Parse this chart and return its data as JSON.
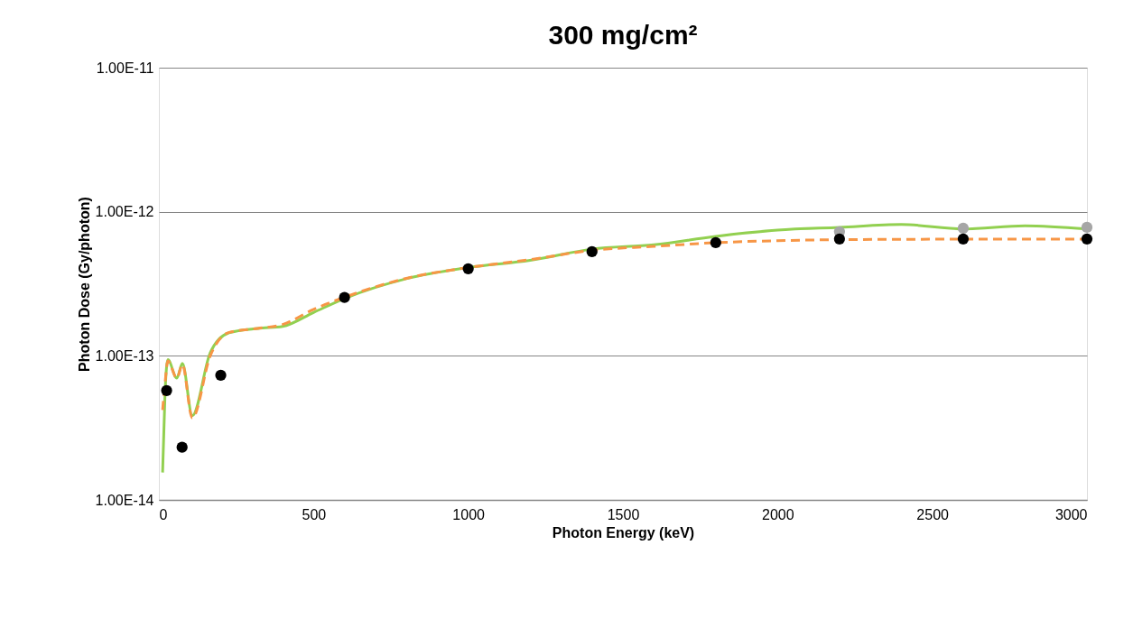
{
  "chart_data": {
    "type": "line",
    "title": "300 mg/cm²",
    "xlabel": "Photon Energy (keV)",
    "ylabel": "Photon Dose (Gy/photon)",
    "xlim": [
      0,
      3000
    ],
    "xticks": [
      0,
      500,
      1000,
      1500,
      2000,
      2500,
      3000
    ],
    "ylim": [
      1e-14,
      1e-11
    ],
    "yticks": [
      {
        "value": 1e-14,
        "label": "1.00E-14"
      },
      {
        "value": 1e-13,
        "label": "1.00E-13"
      },
      {
        "value": 1e-12,
        "label": "1.00E-12"
      },
      {
        "value": 1e-11,
        "label": "1.00E-11"
      }
    ],
    "log": "y",
    "grid": "y",
    "series": [
      {
        "type": "line",
        "color": "#92d050",
        "line_style": "solid",
        "marker": "none",
        "x": [
          12,
          20,
          29,
          58,
          76,
          108,
          166,
          225,
          320,
          400,
          500,
          600,
          800,
          1000,
          1200,
          1400,
          1600,
          1800,
          2000,
          2200,
          2400,
          2600,
          2800,
          3000
        ],
        "values": [
          1.55e-14,
          5.6e-14,
          9.4e-14,
          7e-14,
          8.85e-14,
          3.84e-14,
          1.05e-13,
          1.44e-13,
          1.55e-13,
          1.6e-13,
          2e-13,
          2.5e-13,
          3.43e-13,
          4.1e-13,
          4.6e-13,
          5.5e-13,
          5.9e-13,
          6.75e-13,
          7.46e-13,
          7.8e-13,
          8.15e-13,
          7.6e-13,
          8e-13,
          7.6e-13
        ]
      },
      {
        "type": "line",
        "color": "#f79646",
        "line_style": "dashed",
        "marker": "none",
        "x": [
          12,
          20,
          29,
          58,
          76,
          108,
          166,
          225,
          320,
          400,
          500,
          600,
          800,
          1000,
          1200,
          1400,
          1600,
          1800,
          2000,
          2200,
          2600,
          3000
        ],
        "values": [
          4.2e-14,
          6.5e-14,
          9.2e-14,
          7e-14,
          8.7e-14,
          3.7e-14,
          1e-13,
          1.45e-13,
          1.55e-13,
          1.65e-13,
          2.1e-13,
          2.55e-13,
          3.45e-13,
          4.1e-13,
          4.65e-13,
          5.4e-13,
          5.75e-13,
          6.1e-13,
          6.3e-13,
          6.4e-13,
          6.45e-13,
          6.45e-13
        ]
      },
      {
        "type": "scatter",
        "color": "#a6a6a6",
        "marker": "circle",
        "x": [
          2200,
          2600,
          3000
        ],
        "values": [
          7.26e-13,
          7.69e-13,
          7.8e-13
        ]
      },
      {
        "type": "scatter",
        "color": "#000000",
        "marker": "circle",
        "x": [
          25,
          75,
          200,
          600,
          1000,
          1400,
          1800,
          2200,
          2600,
          3000
        ],
        "values": [
          5.74e-14,
          2.32e-14,
          7.33e-14,
          2.54e-13,
          4.02e-13,
          5.28e-13,
          6.1e-13,
          6.47e-13,
          6.47e-13,
          6.47e-13
        ]
      }
    ]
  }
}
